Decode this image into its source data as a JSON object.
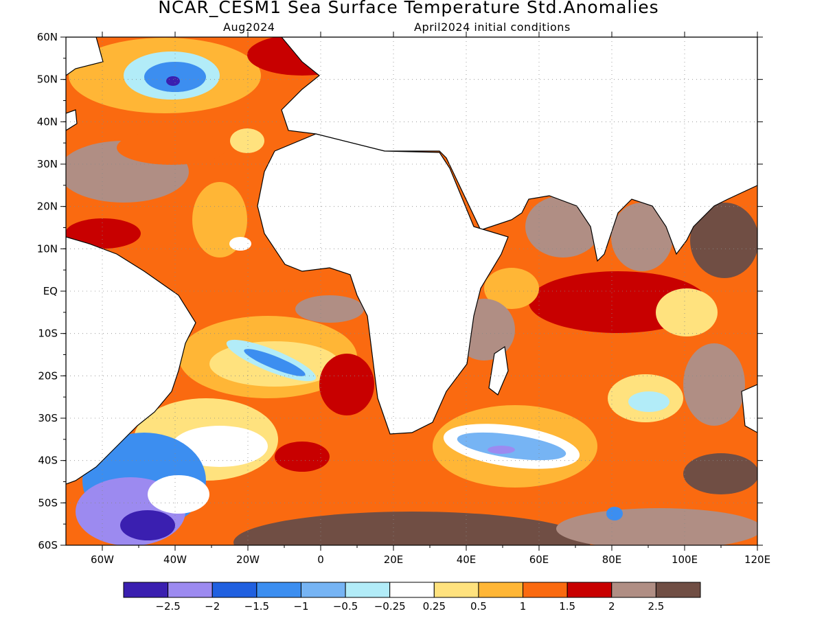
{
  "title": "NCAR_CESM1 Sea Surface Temperature Std.Anomalies",
  "subtitle_left": "Aug2024",
  "subtitle_right": "April2024 initial conditions",
  "extent": {
    "lon": [
      -70,
      120
    ],
    "lat": [
      -60,
      60
    ]
  },
  "lat_labels": [
    "60N",
    "50N",
    "40N",
    "30N",
    "20N",
    "10N",
    "EQ",
    "10S",
    "20S",
    "30S",
    "40S",
    "50S",
    "60S"
  ],
  "lon_labels": [
    "60W",
    "40W",
    "20W",
    "0",
    "20E",
    "40E",
    "60E",
    "80E",
    "100E",
    "120E"
  ],
  "colorbar": {
    "colors": [
      "#3a1fb0",
      "#9c8af0",
      "#2060e0",
      "#3c8ef0",
      "#76b4f4",
      "#b2ecf8",
      "#ffffff",
      "#ffe27e",
      "#ffb636",
      "#fa6a10",
      "#c80000",
      "#b08e84",
      "#704e44"
    ],
    "labels": [
      "−2.5",
      "−2",
      "−1.5",
      "−1",
      "−0.5",
      "−0.25",
      "0.25",
      "0.5",
      "1",
      "1.5",
      "2",
      "2.5"
    ]
  }
}
